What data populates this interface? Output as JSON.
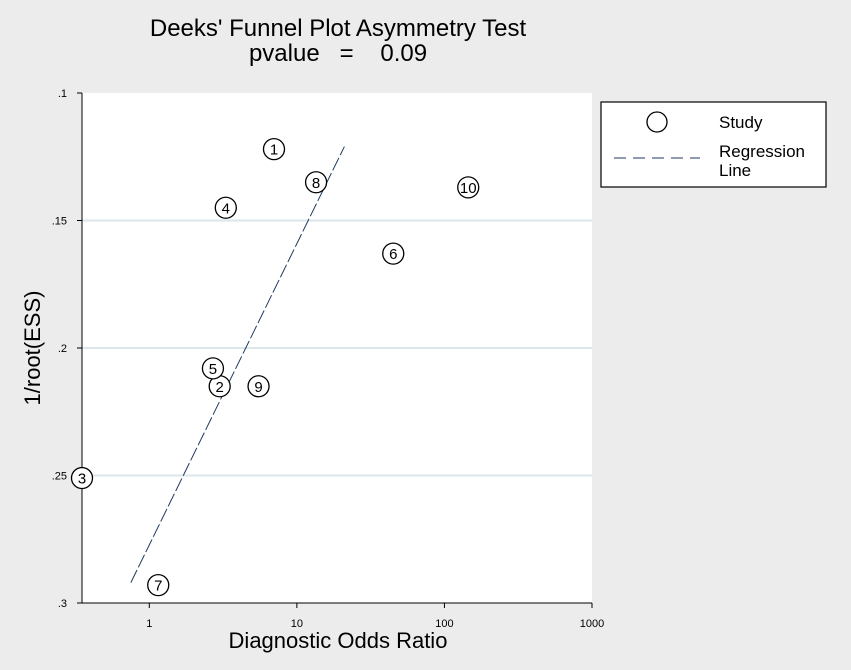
{
  "chart_data": {
    "type": "scatter",
    "title": "Deeks' Funnel Plot Asymmetry Test",
    "subtitle": "pvalue   =    0.09",
    "xlabel": "Diagnostic Odds Ratio",
    "ylabel": "1/root(ESS)",
    "x_scale": "log10",
    "xlim": [
      0.35,
      1000
    ],
    "ylim": [
      0.3,
      0.1
    ],
    "y_inverted": true,
    "x_ticks": [
      {
        "value": 1,
        "label": "1"
      },
      {
        "value": 10,
        "label": "10"
      },
      {
        "value": 100,
        "label": "100"
      },
      {
        "value": 1000,
        "label": "1000"
      }
    ],
    "y_ticks": [
      {
        "value": 0.1,
        "label": ".1"
      },
      {
        "value": 0.15,
        "label": ".15"
      },
      {
        "value": 0.2,
        "label": ".2"
      },
      {
        "value": 0.25,
        "label": ".25"
      },
      {
        "value": 0.3,
        "label": ".3"
      }
    ],
    "grid": "horizontal",
    "legend_position": "right",
    "legend": [
      {
        "label": "Study",
        "marker": "circle"
      },
      {
        "label": "Regression\nLine",
        "marker": "dashed-line"
      }
    ],
    "series": [
      {
        "name": "Study",
        "points": [
          {
            "label": "1",
            "x": 7.0,
            "y": 0.122
          },
          {
            "label": "2",
            "x": 3.0,
            "y": 0.215
          },
          {
            "label": "3",
            "x": 0.35,
            "y": 0.251
          },
          {
            "label": "4",
            "x": 3.3,
            "y": 0.145
          },
          {
            "label": "5",
            "x": 2.7,
            "y": 0.208
          },
          {
            "label": "6",
            "x": 45,
            "y": 0.163
          },
          {
            "label": "7",
            "x": 1.15,
            "y": 0.293
          },
          {
            "label": "8",
            "x": 13.5,
            "y": 0.135
          },
          {
            "label": "9",
            "x": 5.5,
            "y": 0.215
          },
          {
            "label": "10",
            "x": 145,
            "y": 0.137
          }
        ]
      },
      {
        "name": "Regression Line",
        "line": [
          {
            "x": 0.75,
            "y": 0.292
          },
          {
            "x": 21,
            "y": 0.121
          }
        ]
      }
    ],
    "colors": {
      "background": "#ececec",
      "plot_background": "#ffffff",
      "grid": "#dbe7e8",
      "regression_line": "#1f3a5f",
      "marker": "#000000"
    }
  }
}
